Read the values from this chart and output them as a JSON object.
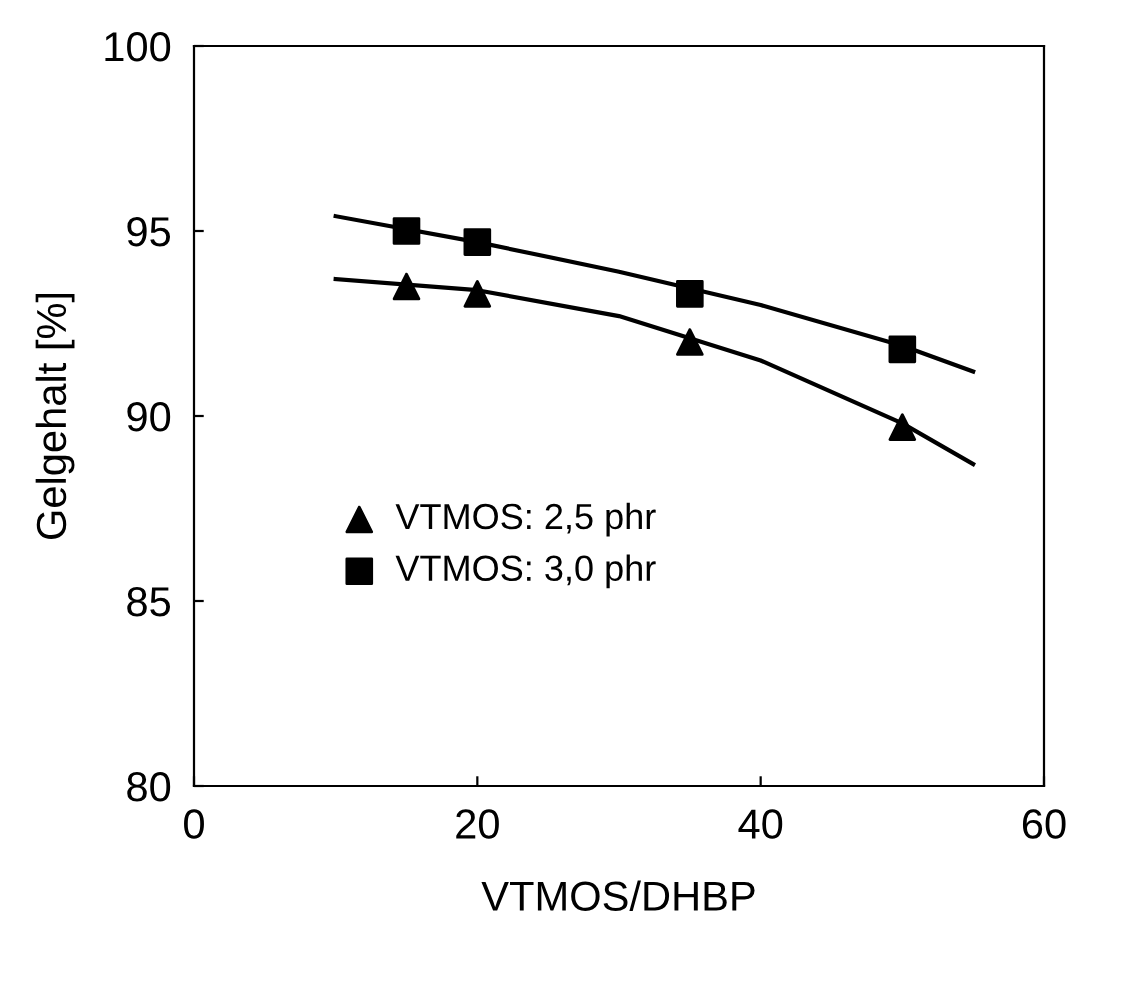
{
  "chart_data": {
    "type": "scatter",
    "xlabel": "VTMOS/DHBP",
    "ylabel": "Gelgehalt [%]",
    "xlim": [
      0,
      60
    ],
    "xticks": [
      0,
      20,
      40,
      60
    ],
    "ylim": [
      80,
      100
    ],
    "yticks": [
      80,
      85,
      90,
      95,
      100
    ],
    "grid": false,
    "legend": "center left",
    "series": [
      {
        "name": "VTMOS: 2,5 phr",
        "color": "#000000",
        "marker": "triangle",
        "x": [
          15,
          20,
          35,
          50
        ],
        "values": [
          93.5,
          93.3,
          92.0,
          89.7
        ]
      },
      {
        "name": "VTMOS: 3,0 phr",
        "color": "#000000",
        "marker": "square",
        "x": [
          15,
          20,
          35,
          50
        ],
        "values": [
          95.0,
          94.7,
          93.3,
          91.8
        ]
      },
      {
        "type": "line",
        "color": "#000000",
        "marker": "none",
        "x": [
          10,
          20,
          30,
          40,
          50,
          55
        ],
        "values": [
          93.7,
          93.4,
          92.7,
          91.5,
          89.8,
          88.7
        ]
      },
      {
        "type": "line",
        "color": "#000000",
        "marker": "none",
        "x": [
          10,
          20,
          30,
          40,
          50,
          55
        ],
        "values": [
          95.4,
          94.7,
          93.9,
          93.0,
          91.9,
          91.2
        ]
      }
    ]
  }
}
